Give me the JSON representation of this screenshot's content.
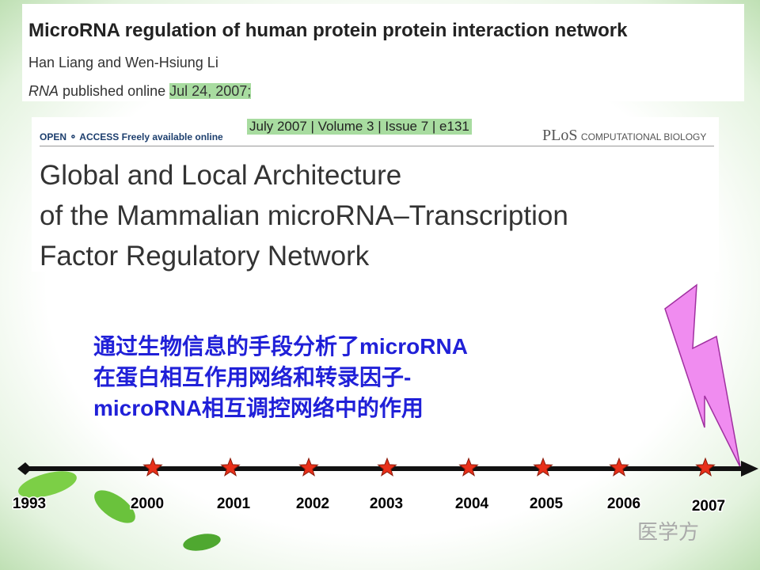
{
  "paper1": {
    "title": "MicroRNA regulation of human protein protein interaction network",
    "authors": "Han Liang and Wen-Hsiung Li",
    "journal": "RNA",
    "published": "published online",
    "date": "Jul 24, 2007;"
  },
  "paper2": {
    "open": "OPEN",
    "access": "ACCESS",
    "free": "Freely available online",
    "issue": "July 2007 | Volume 3 | Issue 7 | e131",
    "plos": "PLoS",
    "journal": "COMPUTATIONAL BIOLOGY",
    "title_lines": [
      "Global and Local Architecture",
      "of the Mammalian microRNA–Transcription",
      "Factor Regulatory Network"
    ]
  },
  "summary_lines": [
    "通过生物信息的手段分析了microRNA",
    "在蛋白相互作用网络和转录因子-",
    "microRNA相互调控网络中的作用"
  ],
  "timeline": {
    "years": [
      "1993",
      "2000",
      "2001",
      "2002",
      "2003",
      "2004",
      "2005",
      "2006",
      "2007"
    ]
  },
  "watermark": "医学方"
}
